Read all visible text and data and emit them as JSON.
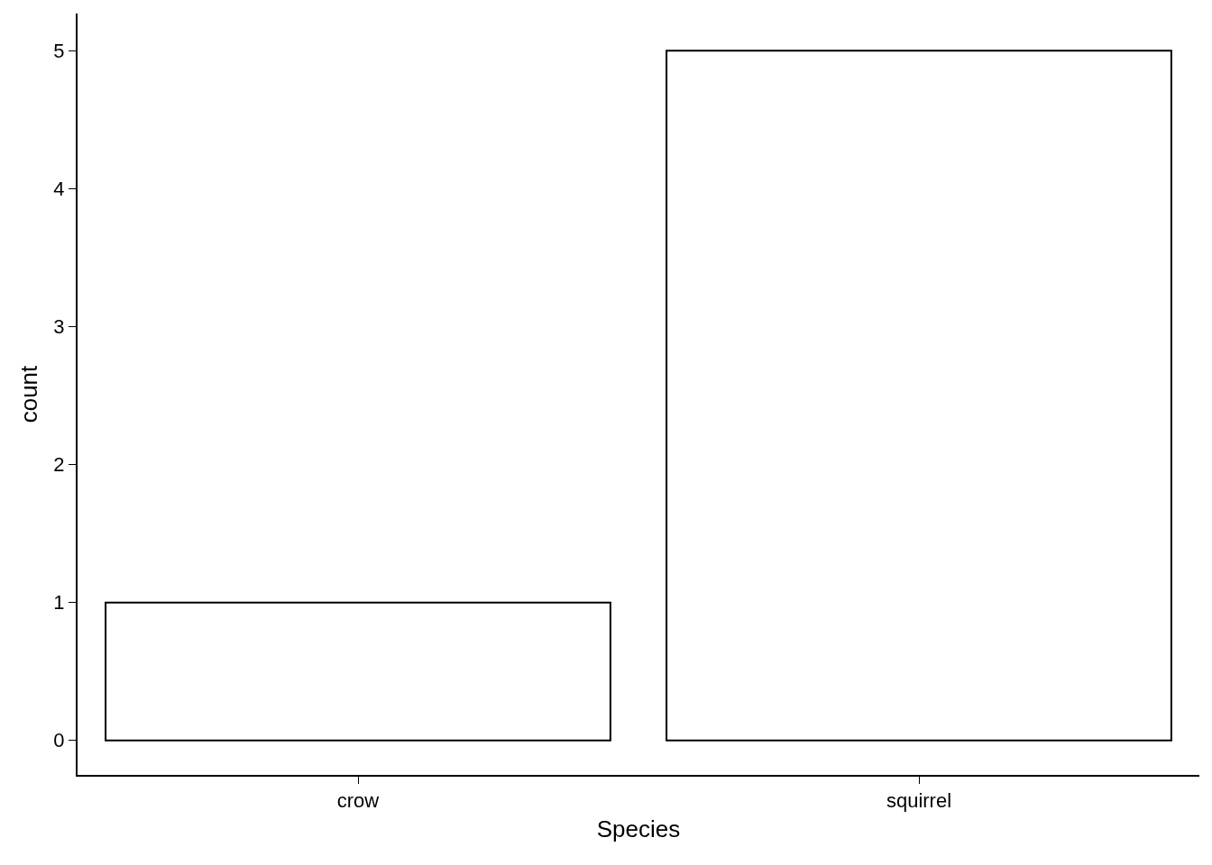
{
  "chart_data": {
    "type": "bar",
    "xlabel": "Species",
    "ylabel": "count",
    "categories": [
      "crow",
      "squirrel"
    ],
    "values": [
      1,
      5
    ],
    "color": "#ffffff",
    "ylim": [
      -0.25,
      5.27
    ],
    "yticks": [
      0,
      1,
      2,
      3,
      4,
      5
    ],
    "legend": false
  }
}
